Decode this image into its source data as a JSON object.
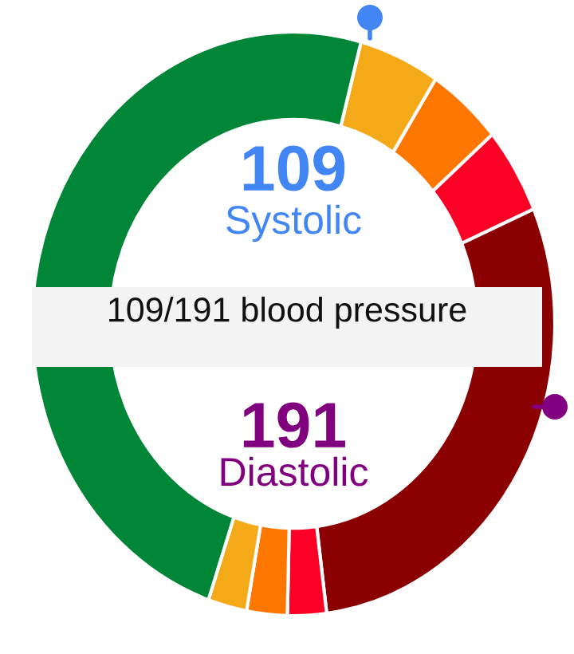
{
  "chart_data": {
    "type": "donut",
    "title": "109/191 blood pressure",
    "annotations": [
      "109",
      "Systolic",
      "191",
      "Diastolic"
    ],
    "categories": [
      null,
      null,
      null,
      null,
      null,
      null,
      null,
      null
    ],
    "values": [
      5,
      4.6,
      4.8,
      29.4,
      2.4,
      2.5,
      2.4,
      48.9
    ],
    "colors": [
      "#f4a918",
      "#fc7600",
      "#fb0125",
      "#8b0000",
      "#fb0125",
      "#fc7600",
      "#f4a918",
      "#018536"
    ]
  }
}
